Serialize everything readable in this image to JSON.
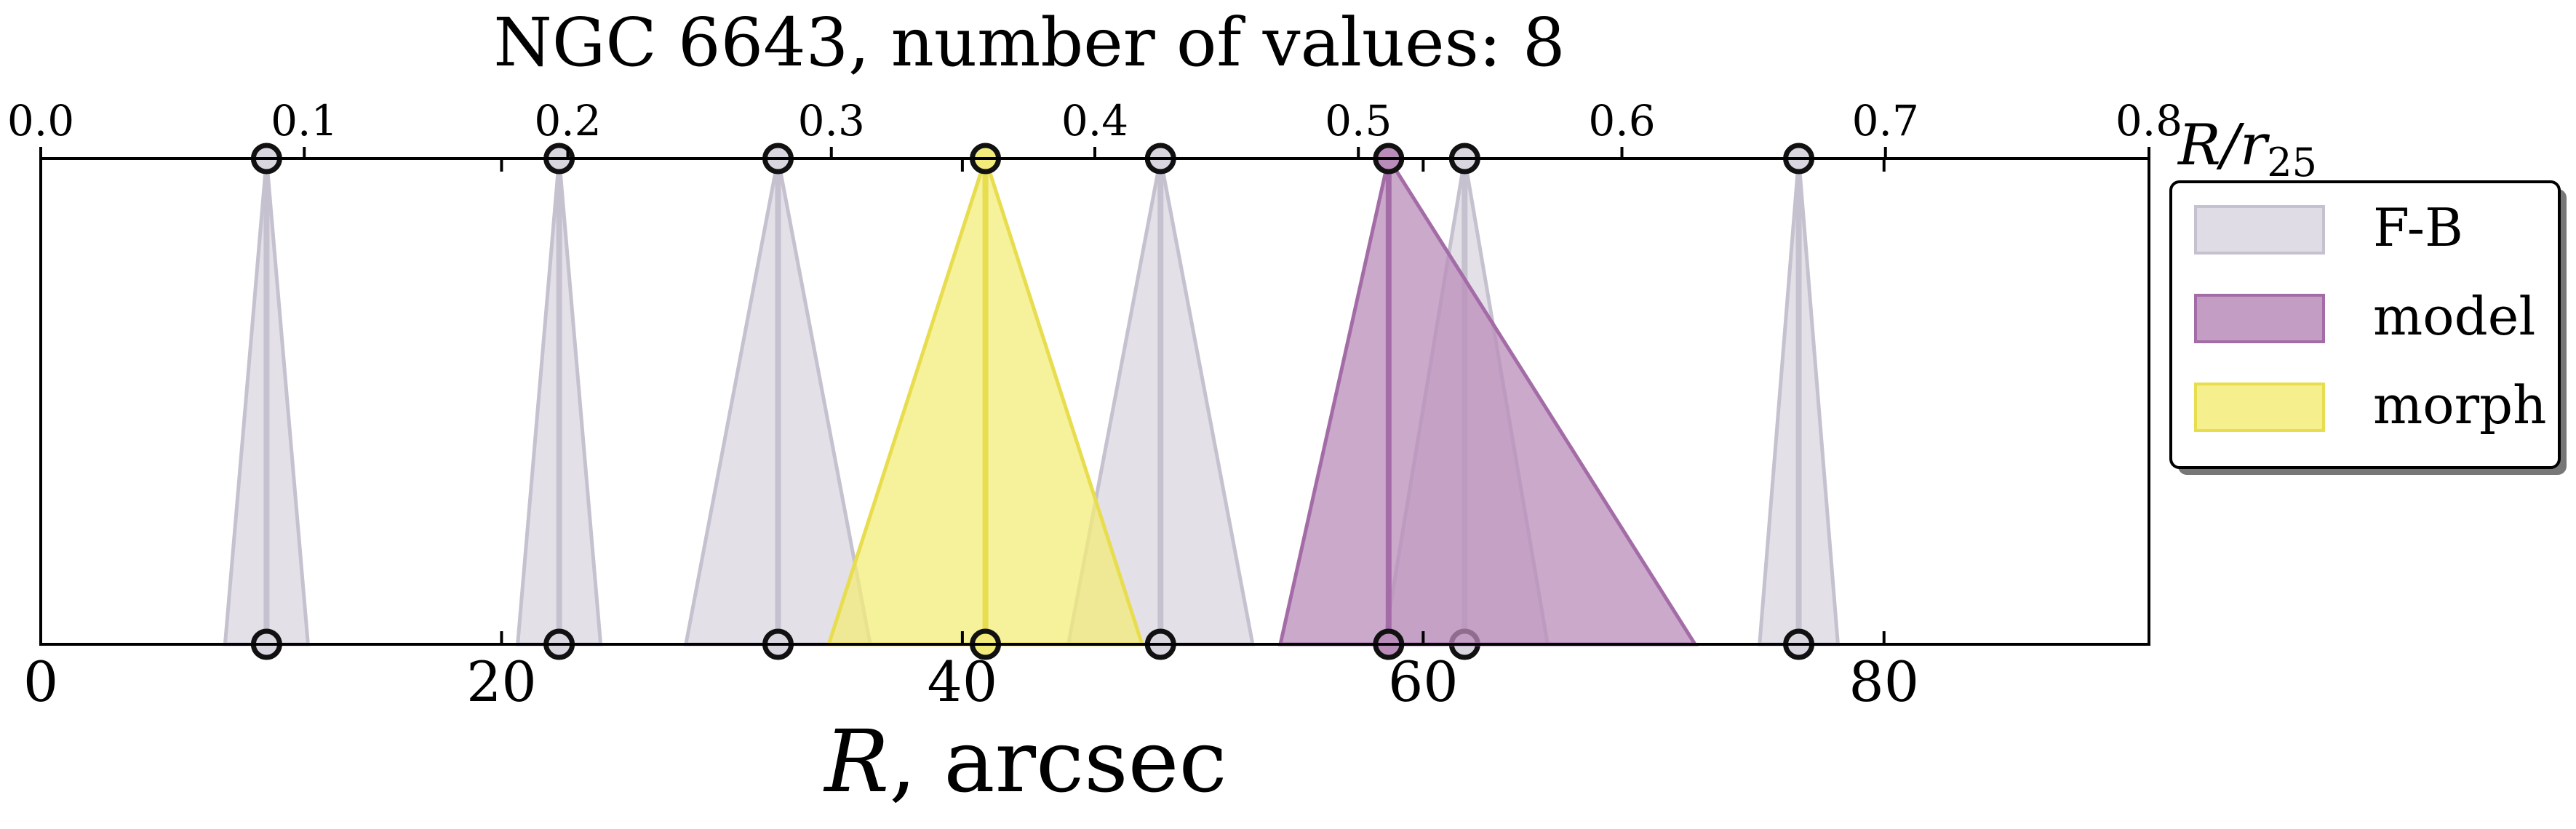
{
  "chart_data": {
    "type": "triangle-intervals",
    "title": "NGC 6643, number of values: 8",
    "xlabel": "R, arcsec",
    "xlabel_var": "R",
    "xlabel_unit": ", arcsec",
    "top_axis_label": "R/r25",
    "top_axis_label_var": "R/r",
    "top_axis_label_sub": "25",
    "xlim": [
      0,
      91.5
    ],
    "top_xlim": [
      0.0,
      0.8
    ],
    "bottom_ticks": [
      0,
      20,
      40,
      60,
      80
    ],
    "top_ticks": [
      0.0,
      0.1,
      0.2,
      0.3,
      0.4,
      0.5,
      0.6,
      0.7,
      0.8
    ],
    "legend": {
      "position": "right",
      "entries": [
        {
          "label": "F-B",
          "color": "#d9d6e0"
        },
        {
          "label": "model",
          "color": "#b98cba"
        },
        {
          "label": "morph",
          "color": "#f3ec7a"
        }
      ]
    },
    "series": [
      {
        "name": "F-B",
        "color": "#d9d6e0",
        "edge": "#c5c1cf",
        "values": [
          {
            "center": 9.8,
            "low": 8.0,
            "high": 11.6
          },
          {
            "center": 22.5,
            "low": 20.7,
            "high": 24.3
          },
          {
            "center": 32.0,
            "low": 28.0,
            "high": 36.0
          },
          {
            "center": 48.6,
            "low": 44.6,
            "high": 52.6
          },
          {
            "center": 61.8,
            "low": 58.3,
            "high": 65.4
          },
          {
            "center": 76.3,
            "low": 74.6,
            "high": 78.0
          }
        ]
      },
      {
        "name": "model",
        "color": "#b98cba",
        "edge": "#a36ca6",
        "values": [
          {
            "center": 58.5,
            "low": 53.8,
            "high": 71.8
          }
        ]
      },
      {
        "name": "morph",
        "color": "#f3ec7a",
        "edge": "#e8dd4e",
        "values": [
          {
            "center": 41.0,
            "low": 34.2,
            "high": 47.8
          }
        ]
      }
    ]
  }
}
